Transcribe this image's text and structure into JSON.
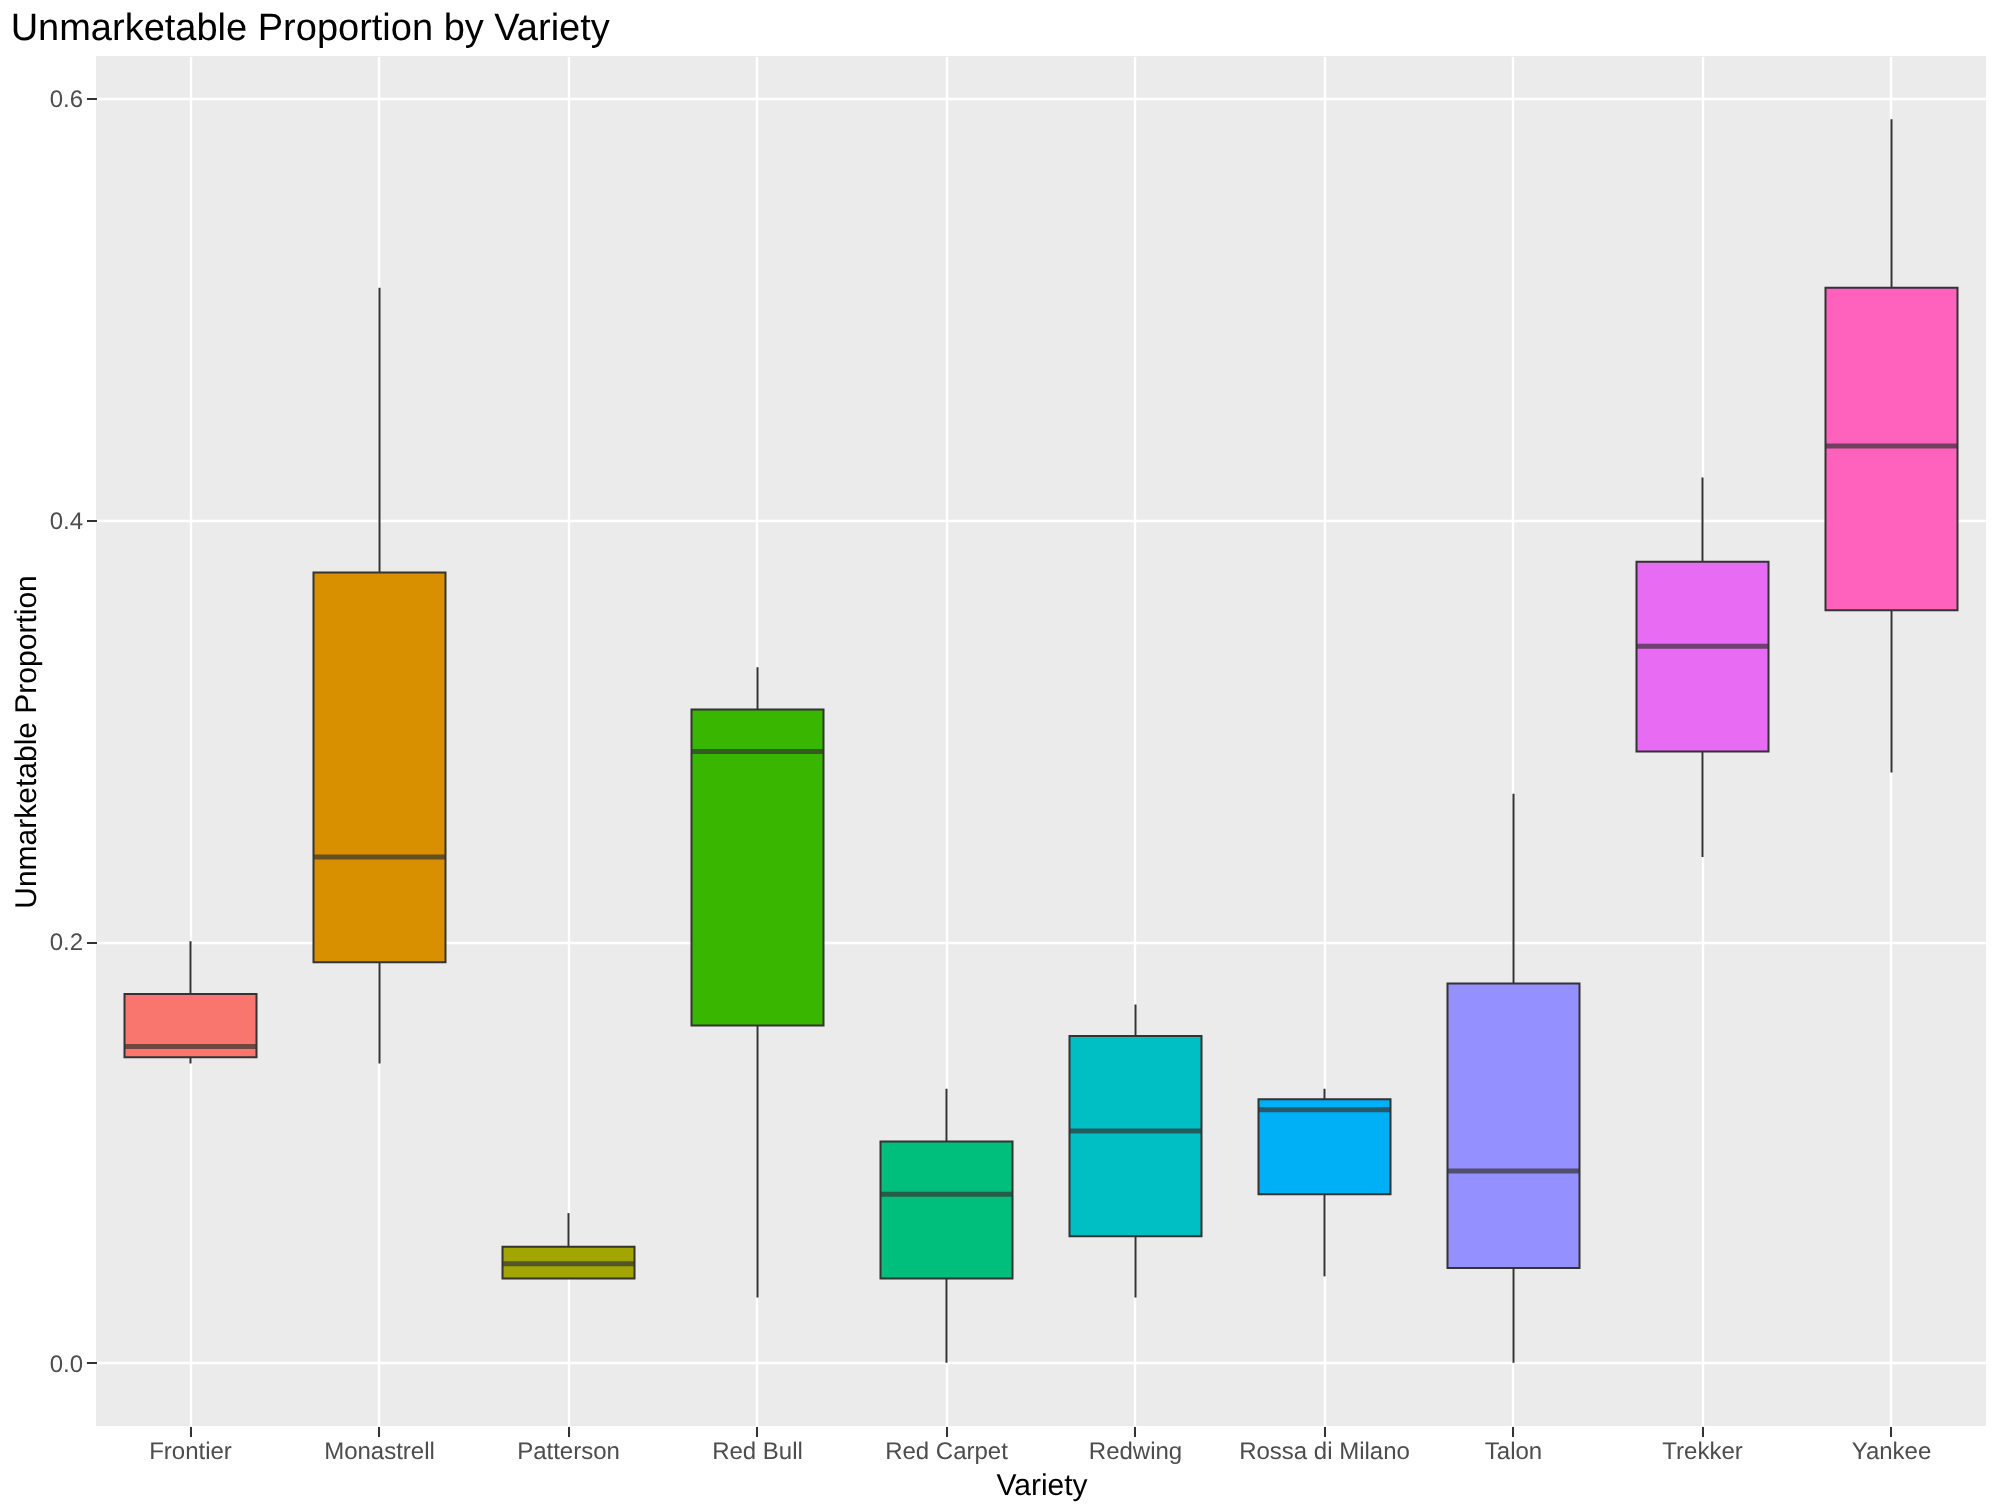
{
  "chart_data": {
    "type": "box",
    "title": "Unmarketable Proportion by Variety",
    "xlabel": "Variety",
    "ylabel": "Unmarketable Proportion",
    "categories": [
      "Frontier",
      "Monastrell",
      "Patterson",
      "Red Bull",
      "Red Carpet",
      "Redwing",
      "Rossa di Milano",
      "Talon",
      "Trekker",
      "Yankee"
    ],
    "colors": [
      "#f8766d",
      "#d89000",
      "#a3a500",
      "#39b600",
      "#00bf7d",
      "#00bfc4",
      "#00b0f6",
      "#9590ff",
      "#e76bf3",
      "#ff62bc"
    ],
    "boxes": [
      {
        "low": 0.142,
        "q1": 0.145,
        "median": 0.15,
        "q3": 0.175,
        "high": 0.2
      },
      {
        "low": 0.142,
        "q1": 0.19,
        "median": 0.24,
        "q3": 0.375,
        "high": 0.51
      },
      {
        "low": 0.04,
        "q1": 0.04,
        "median": 0.047,
        "q3": 0.055,
        "high": 0.071
      },
      {
        "low": 0.031,
        "q1": 0.16,
        "median": 0.29,
        "q3": 0.31,
        "high": 0.33
      },
      {
        "low": 0.0,
        "q1": 0.04,
        "median": 0.08,
        "q3": 0.105,
        "high": 0.13
      },
      {
        "low": 0.031,
        "q1": 0.06,
        "median": 0.11,
        "q3": 0.155,
        "high": 0.17
      },
      {
        "low": 0.041,
        "q1": 0.08,
        "median": 0.12,
        "q3": 0.125,
        "high": 0.13
      },
      {
        "low": 0.0,
        "q1": 0.045,
        "median": 0.091,
        "q3": 0.18,
        "high": 0.27
      },
      {
        "low": 0.24,
        "q1": 0.29,
        "median": 0.34,
        "q3": 0.38,
        "high": 0.42
      },
      {
        "low": 0.28,
        "q1": 0.357,
        "median": 0.435,
        "q3": 0.51,
        "high": 0.59
      }
    ],
    "ylim": [
      -0.03,
      0.62
    ],
    "yticks": [
      {
        "value": 0,
        "label": "0.0"
      },
      {
        "value": 0.2,
        "label": "0.2"
      },
      {
        "value": 0.4,
        "label": "0.4"
      },
      {
        "value": 0.6,
        "label": "0.6"
      }
    ],
    "grid": true
  }
}
